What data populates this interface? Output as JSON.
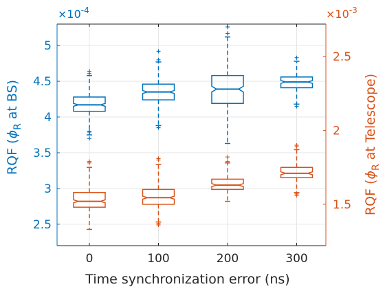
{
  "chart_data": {
    "type": "boxplot",
    "xlabel": "Time synchronization error (ns)",
    "categories": [
      "0",
      "100",
      "200",
      "300"
    ],
    "left_axis": {
      "label_prefix": "RQF (",
      "label_phi": "ϕ",
      "label_sub": "R",
      "label_suffix": " at BS)",
      "multiplier": "×10",
      "exponent": "-4",
      "ylim": [
        2.2,
        5.3
      ],
      "ticks": [
        2.5,
        3,
        3.5,
        4,
        4.5,
        5
      ],
      "tick_labels": [
        "2.5",
        "3",
        "3.5",
        "4",
        "4.5",
        "5"
      ],
      "color": "#0072BD"
    },
    "right_axis": {
      "label_prefix": "RQF (",
      "label_phi": "ϕ",
      "label_sub": "R",
      "label_suffix": " at Telescope)",
      "multiplier": "×10",
      "exponent": "-3",
      "ylim": [
        1.22,
        2.72
      ],
      "ticks": [
        1.5,
        2,
        2.5
      ],
      "tick_labels": [
        "1.5",
        "2",
        "2.5"
      ],
      "color": "#D95319"
    },
    "series": [
      {
        "axis": "left",
        "color": "#0072BD",
        "boxes": [
          {
            "whisker_low": 3.75,
            "q1": 4.08,
            "median": 4.17,
            "q3": 4.28,
            "whisker_high": 4.58,
            "notch_low": 4.15,
            "notch_high": 4.19,
            "outliers": [
              3.7,
              3.79,
              3.8,
              4.61,
              4.64
            ]
          },
          {
            "whisker_low": 3.88,
            "q1": 4.24,
            "median": 4.35,
            "q3": 4.46,
            "whisker_high": 4.77,
            "notch_low": 4.33,
            "notch_high": 4.37,
            "outliers": [
              3.85,
              4.8,
              4.92
            ]
          },
          {
            "whisker_low": 3.63,
            "q1": 4.19,
            "median": 4.39,
            "q3": 4.58,
            "whisker_high": 5.12,
            "notch_low": 4.35,
            "notch_high": 4.43,
            "outliers": [
              5.17,
              5.26
            ]
          },
          {
            "whisker_low": 4.18,
            "q1": 4.41,
            "median": 4.49,
            "q3": 4.56,
            "whisker_high": 4.78,
            "notch_low": 4.47,
            "notch_high": 4.51,
            "outliers": [
              4.15,
              4.83
            ]
          }
        ]
      },
      {
        "axis": "right",
        "color": "#D95319",
        "boxes": [
          {
            "whisker_low": 1.33,
            "q1": 1.48,
            "median": 1.52,
            "q3": 1.58,
            "whisker_high": 1.75,
            "notch_low": 1.51,
            "notch_high": 1.53,
            "outliers": [
              1.78,
              1.79
            ]
          },
          {
            "whisker_low": 1.38,
            "q1": 1.5,
            "median": 1.545,
            "q3": 1.6,
            "whisker_high": 1.77,
            "notch_low": 1.535,
            "notch_high": 1.555,
            "outliers": [
              1.36,
              1.37,
              1.8,
              1.81
            ]
          },
          {
            "whisker_low": 1.52,
            "q1": 1.6,
            "median": 1.63,
            "q3": 1.67,
            "whisker_high": 1.78,
            "notch_low": 1.62,
            "notch_high": 1.64,
            "outliers": [
              1.79,
              1.82
            ]
          },
          {
            "whisker_low": 1.58,
            "q1": 1.68,
            "median": 1.71,
            "q3": 1.75,
            "whisker_high": 1.87,
            "notch_low": 1.7,
            "notch_high": 1.72,
            "outliers": [
              1.56,
              1.57,
              1.89,
              1.9
            ]
          }
        ]
      }
    ],
    "grid": true
  }
}
